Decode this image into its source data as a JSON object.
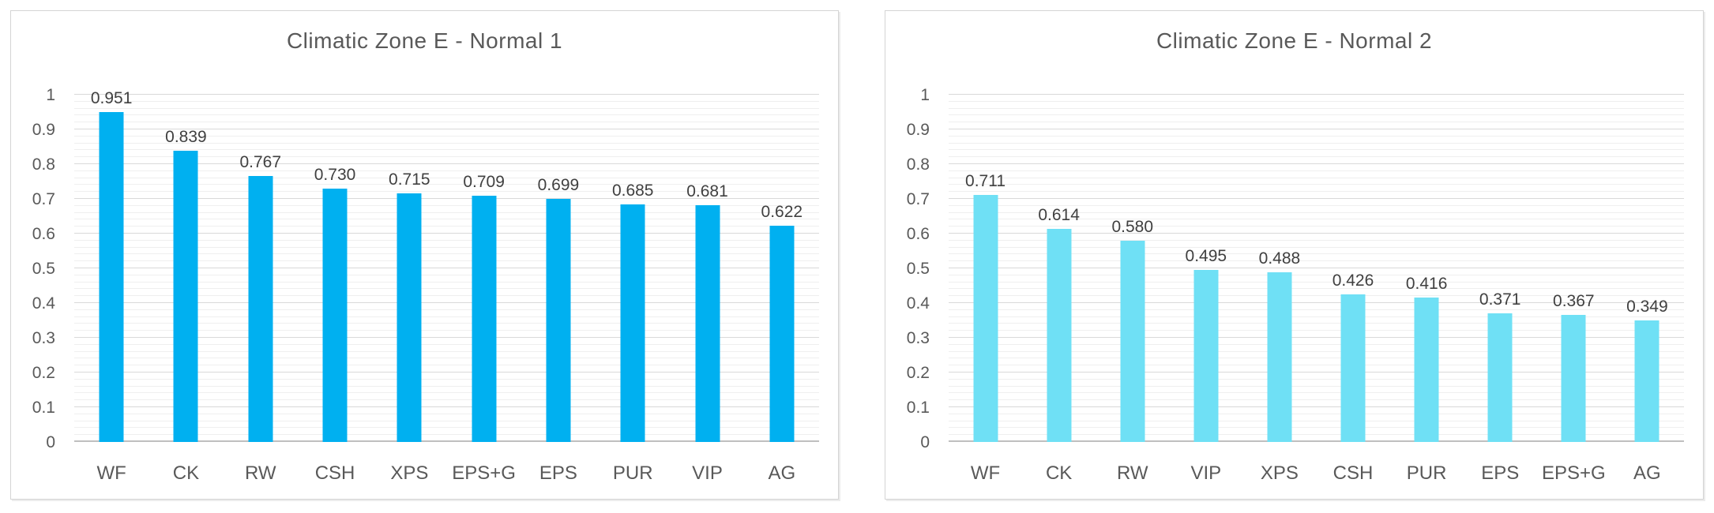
{
  "styles": {
    "background": "#FFFFFF",
    "panel_border": "#D4D4D4",
    "title_color": "#595959",
    "tick_color": "#595959",
    "category_color": "#595959",
    "value_label_color": "#404040",
    "major_grid_color": "#D9D9D9",
    "minor_grid_color": "#EFEFEF",
    "axis_line_color": "#BFBFBF",
    "bar_color_normal_1": "#00B0F0",
    "bar_color_normal_2": "#6FE0F5"
  },
  "chart_data": [
    {
      "type": "bar",
      "title": "Climatic Zone E - Normal 1",
      "categories": [
        "WF",
        "CK",
        "RW",
        "CSH",
        "XPS",
        "EPS+G",
        "EPS",
        "PUR",
        "VIP",
        "AG"
      ],
      "values": [
        0.951,
        0.839,
        0.767,
        0.73,
        0.715,
        0.709,
        0.699,
        0.685,
        0.681,
        0.622
      ],
      "value_labels": [
        "0.951",
        "0.839",
        "0.767",
        "0.730",
        "0.715",
        "0.709",
        "0.699",
        "0.685",
        "0.681",
        "0.622"
      ],
      "bar_color": "#00B0F0",
      "xlabel": "",
      "ylabel": "",
      "ylim": [
        0,
        1
      ],
      "yticks": [
        {
          "label": "1",
          "v": 1.0
        },
        {
          "label": "0.9",
          "v": 0.9
        },
        {
          "label": "0.8",
          "v": 0.8
        },
        {
          "label": "0.7",
          "v": 0.7
        },
        {
          "label": "0.6",
          "v": 0.6
        },
        {
          "label": "0.5",
          "v": 0.5
        },
        {
          "label": "0.4",
          "v": 0.4
        },
        {
          "label": "0.3",
          "v": 0.3
        },
        {
          "label": "0.2",
          "v": 0.2
        },
        {
          "label": "0.1",
          "v": 0.1
        },
        {
          "label": "0",
          "v": 0.0
        }
      ],
      "grid": {
        "on": true,
        "major_step": 0.1,
        "minor_step": 0.02
      },
      "legend": "none"
    },
    {
      "type": "bar",
      "title": "Climatic Zone E - Normal 2",
      "categories": [
        "WF",
        "CK",
        "RW",
        "VIP",
        "XPS",
        "CSH",
        "PUR",
        "EPS",
        "EPS+G",
        "AG"
      ],
      "values": [
        0.711,
        0.614,
        0.58,
        0.495,
        0.488,
        0.426,
        0.416,
        0.371,
        0.367,
        0.349
      ],
      "value_labels": [
        "0.711",
        "0.614",
        "0.580",
        "0.495",
        "0.488",
        "0.426",
        "0.416",
        "0.371",
        "0.367",
        "0.349"
      ],
      "bar_color": "#6FE0F5",
      "xlabel": "",
      "ylabel": "",
      "ylim": [
        0,
        1
      ],
      "yticks": [
        {
          "label": "1",
          "v": 1.0
        },
        {
          "label": "0.9",
          "v": 0.9
        },
        {
          "label": "0.8",
          "v": 0.8
        },
        {
          "label": "0.7",
          "v": 0.7
        },
        {
          "label": "0.6",
          "v": 0.6
        },
        {
          "label": "0.5",
          "v": 0.5
        },
        {
          "label": "0.4",
          "v": 0.4
        },
        {
          "label": "0.3",
          "v": 0.3
        },
        {
          "label": "0.2",
          "v": 0.2
        },
        {
          "label": "0.1",
          "v": 0.1
        },
        {
          "label": "0",
          "v": 0.0
        }
      ],
      "grid": {
        "on": true,
        "major_step": 0.1,
        "minor_step": 0.02
      },
      "legend": "none"
    }
  ]
}
